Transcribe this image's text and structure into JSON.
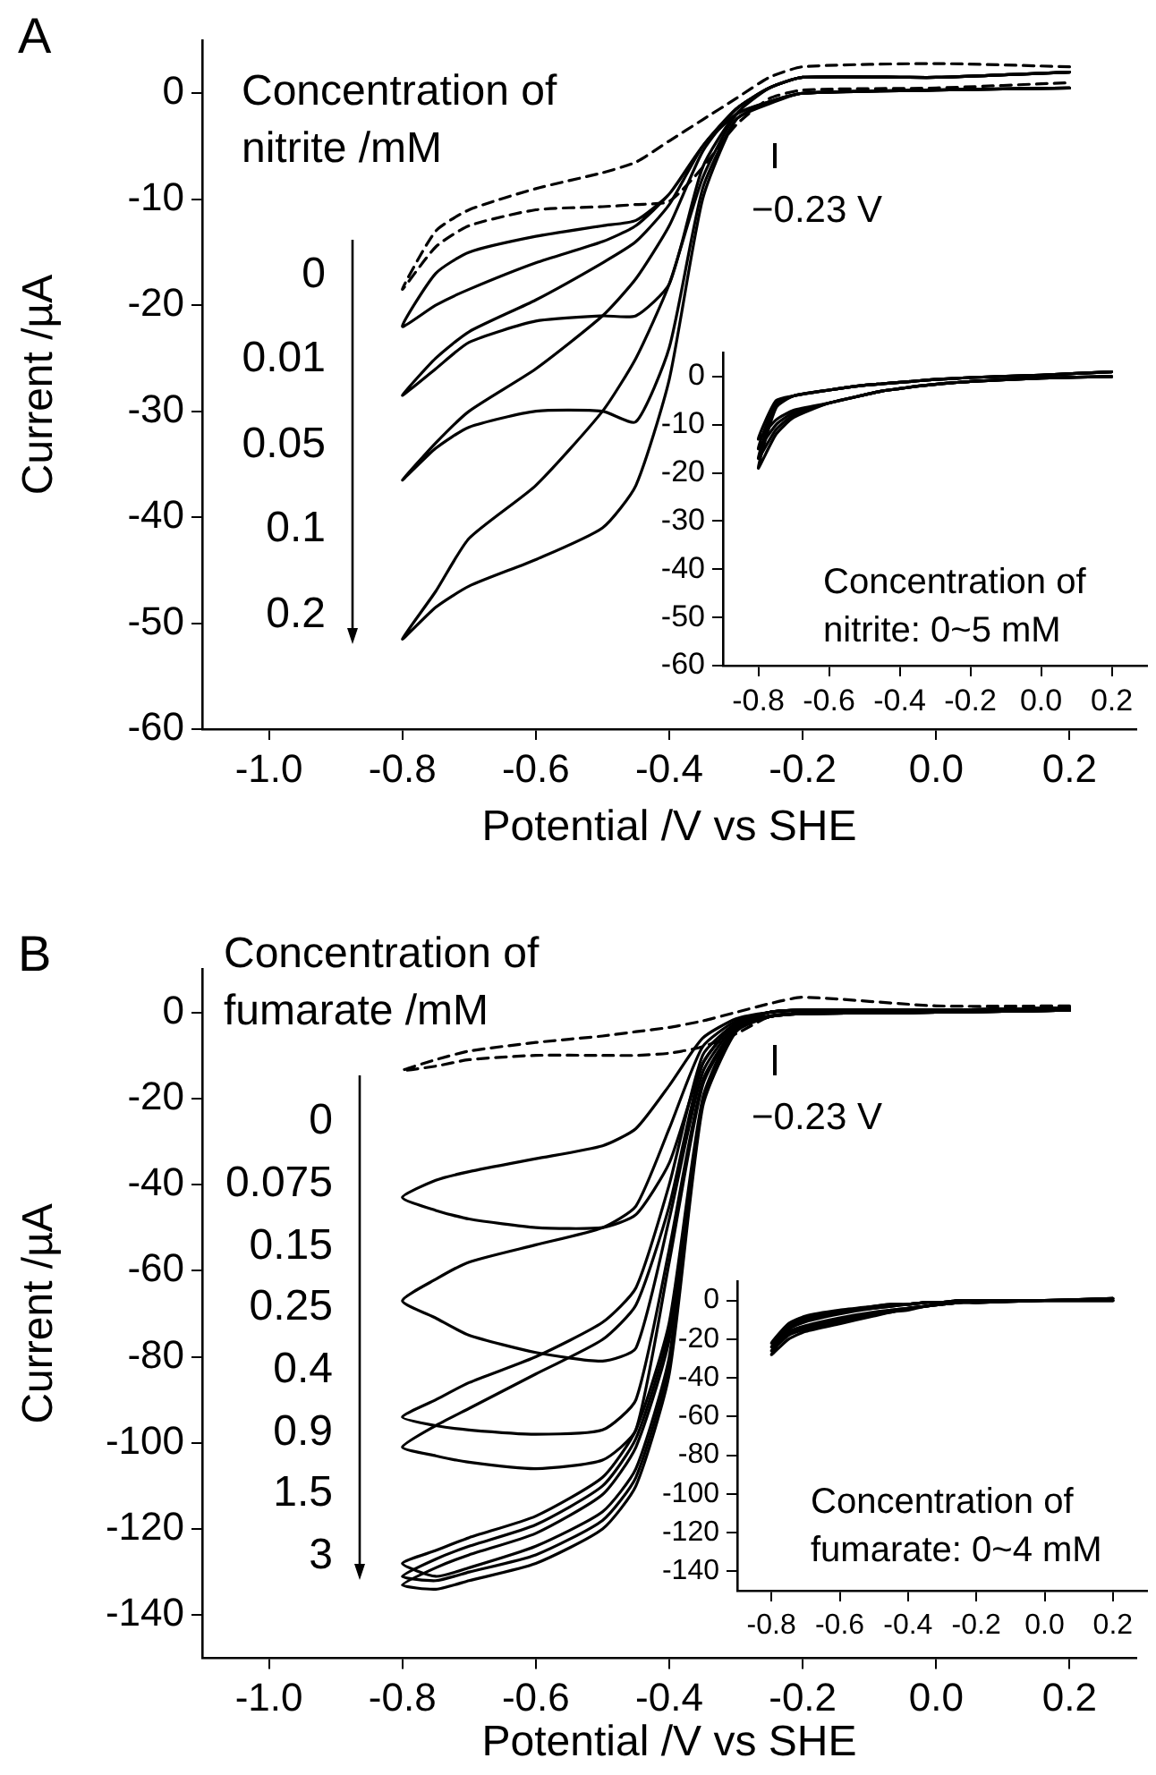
{
  "chart_data": [
    {
      "type": "line",
      "title": "A",
      "xlabel": "Potential /V vs SHE",
      "ylabel": "Current /µA",
      "xlim": [
        -1.1,
        0.3
      ],
      "ylim": [
        -60,
        5
      ],
      "xticks": [
        {
          "value": -1,
          "label": "-1.0"
        },
        {
          "value": -0.8,
          "label": "-0.8"
        },
        {
          "value": -0.6,
          "label": "-0.6"
        },
        {
          "value": -0.4,
          "label": "-0.4"
        },
        {
          "value": -0.2,
          "label": "-0.2"
        },
        {
          "value": 0,
          "label": "0.0"
        },
        {
          "value": 0.2,
          "label": "0.2"
        }
      ],
      "yticks": [
        -60,
        -50,
        -40,
        -30,
        -20,
        -10,
        0
      ],
      "annotations": [
        "Concentration of nitrite /mM",
        "0",
        "0.01",
        "0.05",
        "0.1",
        "0.2",
        "−0.23 V"
      ],
      "series": [
        {
          "color": "#000000",
          "line_style": "dashed",
          "x": [
            0.2,
            0,
            -0.2,
            -0.25,
            -0.3,
            -0.35,
            -0.4,
            -0.45,
            -0.5,
            -0.6,
            -0.7,
            -0.75,
            -0.8,
            -0.75,
            -0.7,
            -0.6,
            -0.5,
            -0.45,
            -0.4,
            -0.35,
            -0.3,
            -0.25,
            -0.2,
            0,
            0.2
          ],
          "values": [
            2.5,
            2.8,
            2.5,
            1.5,
            -0.5,
            -2.5,
            -4.5,
            -6.5,
            -7.5,
            -9,
            -11,
            -13,
            -18.5,
            -14.5,
            -12.5,
            -11,
            -10.7,
            -10.5,
            -10.2,
            -7,
            -3,
            -0.5,
            0.3,
            0.5,
            1
          ]
        },
        {
          "color": "#000000",
          "x": [
            0.2,
            0,
            -0.2,
            -0.25,
            -0.3,
            -0.35,
            -0.4,
            -0.45,
            -0.5,
            -0.6,
            -0.7,
            -0.75,
            -0.8,
            -0.75,
            -0.7,
            -0.6,
            -0.5,
            -0.45,
            -0.4,
            -0.35,
            -0.3,
            -0.25,
            -0.2,
            0,
            0.2
          ],
          "values": [
            0.5,
            0.3,
            0,
            -0.8,
            -2,
            -5,
            -9.5,
            -12.5,
            -14,
            -16,
            -18.5,
            -20,
            -22,
            -17,
            -15,
            -13.5,
            -12.5,
            -12,
            -9.5,
            -5,
            -1.5,
            0.5,
            1.5,
            1.5,
            2
          ]
        },
        {
          "color": "#000000",
          "x": [
            0.2,
            0,
            -0.2,
            -0.25,
            -0.3,
            -0.35,
            -0.4,
            -0.45,
            -0.5,
            -0.6,
            -0.7,
            -0.75,
            -0.8,
            -0.75,
            -0.7,
            -0.6,
            -0.5,
            -0.45,
            -0.4,
            -0.35,
            -0.3,
            -0.25,
            -0.2,
            0,
            0.2
          ],
          "values": [
            0.5,
            0.3,
            0,
            -0.8,
            -2,
            -7,
            -18,
            -21,
            -21,
            -21.5,
            -23.5,
            -26,
            -28.5,
            -25,
            -22.5,
            -19.5,
            -16,
            -14,
            -10.5,
            -5,
            -1.5,
            0.5,
            1.5,
            1.5,
            2
          ]
        },
        {
          "color": "#000000",
          "x": [
            0.2,
            0,
            -0.2,
            -0.25,
            -0.3,
            -0.35,
            -0.4,
            -0.45,
            -0.5,
            -0.6,
            -0.7,
            -0.75,
            -0.8,
            -0.75,
            -0.7,
            -0.6,
            -0.5,
            -0.45,
            -0.4,
            -0.35,
            -0.3,
            -0.25,
            -0.2,
            0,
            0.2
          ],
          "values": [
            0.5,
            0.3,
            0,
            -0.8,
            -2.5,
            -9,
            -24,
            -31,
            -30,
            -30,
            -31.5,
            -33.5,
            -36.5,
            -33,
            -30,
            -26,
            -21,
            -17.5,
            -12.5,
            -5.5,
            -1.5,
            0.5,
            1.5,
            1.5,
            2
          ]
        },
        {
          "color": "#000000",
          "x": [
            0.2,
            0,
            -0.2,
            -0.25,
            -0.3,
            -0.35,
            -0.4,
            -0.45,
            -0.5,
            -0.6,
            -0.7,
            -0.75,
            -0.8,
            -0.75,
            -0.7,
            -0.6,
            -0.5,
            -0.45,
            -0.4,
            -0.35,
            -0.3,
            -0.25,
            -0.2,
            0,
            0.2
          ],
          "values": [
            0.5,
            0.3,
            0,
            -1,
            -2.5,
            -10,
            -27,
            -37,
            -41,
            -44,
            -46.5,
            -48.5,
            -51.5,
            -47,
            -42,
            -37,
            -30,
            -25,
            -18,
            -8,
            -2,
            0.5,
            1.5,
            1.5,
            2
          ]
        }
      ]
    },
    {
      "type": "line",
      "xlim": [
        -0.9,
        0.3
      ],
      "ylim": [
        -60,
        5
      ],
      "xticks": [
        {
          "value": -0.8,
          "label": "-0.8"
        },
        {
          "value": -0.6,
          "label": "-0.6"
        },
        {
          "value": -0.4,
          "label": "-0.4"
        },
        {
          "value": -0.2,
          "label": "-0.2"
        },
        {
          "value": 0,
          "label": "0.0"
        },
        {
          "value": 0.2,
          "label": "0.2"
        }
      ],
      "yticks": [
        -60,
        -50,
        -40,
        -30,
        -20,
        -10,
        0
      ],
      "annotations": [
        "Concentration of nitrite: 0~5 mM"
      ],
      "series": [
        {
          "color": "#000000",
          "x": [
            0.2,
            0,
            -0.2,
            -0.25,
            -0.3,
            -0.35,
            -0.4,
            -0.45,
            -0.5,
            -0.6,
            -0.7,
            -0.75,
            -0.8,
            -0.75,
            -0.7,
            -0.6,
            -0.5,
            -0.45,
            -0.4,
            -0.35,
            -0.3,
            -0.25,
            -0.2,
            0,
            0.2
          ],
          "values": [
            0,
            -0.3,
            -1,
            -1.3,
            -1.6,
            -2,
            -2.5,
            -3,
            -3.8,
            -5.5,
            -7,
            -9,
            -13,
            -5,
            -4,
            -2.8,
            -1.8,
            -1.5,
            -1.2,
            -0.9,
            -0.6,
            -0.4,
            -0.2,
            0.3,
            1
          ]
        },
        {
          "color": "#000000",
          "x": [
            0.2,
            0,
            -0.2,
            -0.25,
            -0.3,
            -0.35,
            -0.4,
            -0.45,
            -0.5,
            -0.6,
            -0.7,
            -0.75,
            -0.8,
            -0.75,
            -0.7,
            -0.6,
            -0.5,
            -0.45,
            -0.4,
            -0.35,
            -0.3,
            -0.25,
            -0.2,
            0,
            0.2
          ],
          "values": [
            0,
            -0.3,
            -1,
            -1.3,
            -1.6,
            -2,
            -2.5,
            -3,
            -3.8,
            -5.5,
            -7.5,
            -10,
            -15,
            -5.5,
            -4,
            -2.8,
            -1.8,
            -1.5,
            -1.2,
            -0.9,
            -0.6,
            -0.4,
            -0.2,
            0.3,
            1
          ]
        },
        {
          "color": "#000000",
          "x": [
            0.2,
            0,
            -0.2,
            -0.25,
            -0.3,
            -0.35,
            -0.4,
            -0.45,
            -0.5,
            -0.6,
            -0.7,
            -0.75,
            -0.8,
            -0.75,
            -0.7,
            -0.6,
            -0.5,
            -0.45,
            -0.4,
            -0.35,
            -0.3,
            -0.25,
            -0.2,
            0,
            0.2
          ],
          "values": [
            0,
            -0.3,
            -1,
            -1.3,
            -1.6,
            -2,
            -2.5,
            -3,
            -3.8,
            -5.5,
            -8,
            -11,
            -17,
            -6,
            -4,
            -2.8,
            -1.8,
            -1.5,
            -1.2,
            -0.9,
            -0.6,
            -0.4,
            -0.2,
            0.3,
            1
          ]
        },
        {
          "color": "#000000",
          "x": [
            0.2,
            0,
            -0.2,
            -0.25,
            -0.3,
            -0.35,
            -0.4,
            -0.45,
            -0.5,
            -0.6,
            -0.7,
            -0.75,
            -0.8,
            -0.75,
            -0.7,
            -0.6,
            -0.5,
            -0.45,
            -0.4,
            -0.35,
            -0.3,
            -0.25,
            -0.2,
            0,
            0.2
          ],
          "values": [
            0,
            -0.3,
            -1,
            -1.3,
            -1.6,
            -2,
            -2.5,
            -3,
            -3.8,
            -5.5,
            -8.5,
            -12,
            -19,
            -6.5,
            -4,
            -2.8,
            -1.8,
            -1.5,
            -1.2,
            -0.9,
            -0.6,
            -0.4,
            -0.2,
            0.3,
            1
          ]
        }
      ]
    },
    {
      "type": "line",
      "title": "B",
      "xlabel": "Potential /V vs SHE",
      "ylabel": "Current /µA",
      "xlim": [
        -1.1,
        0.3
      ],
      "ylim": [
        -150,
        10
      ],
      "xticks": [
        {
          "value": -1,
          "label": "-1.0"
        },
        {
          "value": -0.8,
          "label": "-0.8"
        },
        {
          "value": -0.6,
          "label": "-0.6"
        },
        {
          "value": -0.4,
          "label": "-0.4"
        },
        {
          "value": -0.2,
          "label": "-0.2"
        },
        {
          "value": 0,
          "label": "0.0"
        },
        {
          "value": 0.2,
          "label": "0.2"
        }
      ],
      "yticks": [
        -140,
        -120,
        -100,
        -80,
        -60,
        -40,
        -20,
        0
      ],
      "annotations": [
        "Concentration of fumarate /mM",
        "0",
        "0.075",
        "0.15",
        "0.25",
        "0.4",
        "0.9",
        "1.5",
        "3",
        "−0.23 V"
      ],
      "series": [
        {
          "color": "#000000",
          "line_style": "dashed",
          "x": [
            0.2,
            0,
            -0.2,
            -0.25,
            -0.3,
            -0.35,
            -0.4,
            -0.45,
            -0.5,
            -0.6,
            -0.7,
            -0.75,
            -0.8,
            -0.75,
            -0.7,
            -0.6,
            -0.5,
            -0.45,
            -0.4,
            -0.35,
            -0.3,
            -0.25,
            -0.2,
            0,
            0.2
          ],
          "values": [
            1.5,
            1.5,
            3.5,
            2,
            0,
            -2,
            -3.5,
            -4.5,
            -5.5,
            -7,
            -9,
            -11,
            -13.5,
            -12.5,
            -11,
            -10,
            -10,
            -10,
            -9.5,
            -8,
            -5,
            -1,
            0,
            0.5,
            1
          ]
        },
        {
          "color": "#000000",
          "x": [
            0.2,
            0,
            -0.2,
            -0.25,
            -0.3,
            -0.35,
            -0.4,
            -0.45,
            -0.5,
            -0.6,
            -0.7,
            -0.75,
            -0.8,
            -0.75,
            -0.7,
            -0.6,
            -0.5,
            -0.45,
            -0.4,
            -0.35,
            -0.3,
            -0.25,
            -0.2,
            0,
            0.2
          ],
          "values": [
            0.5,
            0,
            -0.3,
            -0.8,
            -2.5,
            -12,
            -35,
            -47,
            -50,
            -50,
            -48,
            -46,
            -43,
            -39,
            -37,
            -34,
            -31,
            -27,
            -17,
            -6,
            -1.5,
            0,
            0.5,
            0.5,
            1
          ]
        },
        {
          "color": "#000000",
          "x": [
            0.2,
            0,
            -0.2,
            -0.25,
            -0.3,
            -0.35,
            -0.4,
            -0.45,
            -0.5,
            -0.6,
            -0.7,
            -0.75,
            -0.8,
            -0.75,
            -0.7,
            -0.6,
            -0.5,
            -0.45,
            -0.4,
            -0.35,
            -0.3,
            -0.25,
            -0.2,
            0,
            0.2
          ],
          "values": [
            0.5,
            0,
            -0.3,
            -1,
            -3,
            -14,
            -48,
            -78,
            -81,
            -79,
            -75,
            -71,
            -67,
            -62,
            -58,
            -54,
            -50,
            -45,
            -27,
            -8,
            -2,
            0,
            0.5,
            0.5,
            1
          ]
        },
        {
          "color": "#000000",
          "x": [
            0.2,
            0,
            -0.2,
            -0.25,
            -0.3,
            -0.35,
            -0.4,
            -0.45,
            -0.5,
            -0.6,
            -0.7,
            -0.75,
            -0.8,
            -0.75,
            -0.7,
            -0.6,
            -0.5,
            -0.45,
            -0.4,
            -0.35,
            -0.3,
            -0.25,
            -0.2,
            0,
            0.2
          ],
          "values": [
            0.5,
            0,
            -0.3,
            -1,
            -3.5,
            -16,
            -55,
            -90,
            -97,
            -98,
            -97,
            -96,
            -94,
            -90,
            -86,
            -80,
            -72,
            -64,
            -40,
            -10,
            -2.5,
            0,
            0.5,
            0.5,
            1
          ]
        },
        {
          "color": "#000000",
          "x": [
            0.2,
            0,
            -0.2,
            -0.25,
            -0.3,
            -0.35,
            -0.4,
            -0.45,
            -0.5,
            -0.6,
            -0.7,
            -0.75,
            -0.8,
            -0.75,
            -0.7,
            -0.6,
            -0.5,
            -0.45,
            -0.4,
            -0.35,
            -0.3,
            -0.25,
            -0.2,
            0,
            0.2
          ],
          "values": [
            0.5,
            0,
            -0.3,
            -1,
            -3.5,
            -17,
            -58,
            -97,
            -104,
            -106,
            -104.5,
            -103,
            -101,
            -96,
            -92,
            -84,
            -76,
            -68,
            -45,
            -12,
            -2.5,
            0,
            0.5,
            0.5,
            1
          ]
        },
        {
          "color": "#000000",
          "x": [
            0.2,
            0,
            -0.2,
            -0.25,
            -0.3,
            -0.35,
            -0.4,
            -0.45,
            -0.5,
            -0.6,
            -0.7,
            -0.75,
            -0.8,
            -0.75,
            -0.7,
            -0.6,
            -0.5,
            -0.45,
            -0.4,
            -0.35,
            -0.3,
            -0.25,
            -0.2,
            0,
            0.2
          ],
          "values": [
            0.5,
            0,
            -0.3,
            -1,
            -4,
            -20,
            -80,
            -106,
            -116,
            -124,
            -129,
            -131,
            -128,
            -125,
            -122,
            -117,
            -108,
            -97,
            -72,
            -20,
            -3,
            0,
            0.5,
            0.5,
            1
          ]
        },
        {
          "color": "#000000",
          "x": [
            0.2,
            0,
            -0.2,
            -0.25,
            -0.3,
            -0.35,
            -0.4,
            -0.45,
            -0.5,
            -0.6,
            -0.7,
            -0.75,
            -0.8,
            -0.75,
            -0.7,
            -0.6,
            -0.5,
            -0.45,
            -0.4,
            -0.35,
            -0.3,
            -0.25,
            -0.2,
            0,
            0.2
          ],
          "values": [
            0.5,
            0,
            -0.3,
            -1,
            -4,
            -21,
            -82,
            -108,
            -118,
            -126,
            -130,
            -132,
            -131,
            -127,
            -124,
            -119,
            -110,
            -99,
            -74,
            -21,
            -3,
            0,
            0.5,
            0.5,
            1
          ]
        },
        {
          "color": "#000000",
          "x": [
            0.2,
            0,
            -0.2,
            -0.25,
            -0.3,
            -0.35,
            -0.4,
            -0.45,
            -0.5,
            -0.6,
            -0.7,
            -0.75,
            -0.8,
            -0.75,
            -0.7,
            -0.6,
            -0.5,
            -0.45,
            -0.4,
            -0.35,
            -0.3,
            -0.25,
            -0.2,
            0,
            0.2
          ],
          "values": [
            0.5,
            0,
            -0.3,
            -1,
            -4.5,
            -22,
            -84,
            -110,
            -120,
            -128,
            -132,
            -134,
            -133,
            -129,
            -126,
            -121,
            -112,
            -101,
            -76,
            -22,
            -3,
            0,
            0.5,
            0.5,
            1
          ]
        }
      ]
    },
    {
      "type": "line",
      "xlim": [
        -0.9,
        0.3
      ],
      "ylim": [
        -150,
        10
      ],
      "xticks": [
        {
          "value": -0.8,
          "label": "-0.8"
        },
        {
          "value": -0.6,
          "label": "-0.6"
        },
        {
          "value": -0.4,
          "label": "-0.4"
        },
        {
          "value": -0.2,
          "label": "-0.2"
        },
        {
          "value": 0,
          "label": "0.0"
        },
        {
          "value": 0.2,
          "label": "0.2"
        }
      ],
      "yticks": [
        -140,
        -120,
        -100,
        -80,
        -60,
        -40,
        -20,
        0
      ],
      "annotations": [
        "Concentration of fumarate: 0~4 mM"
      ],
      "series": [
        {
          "color": "#000000",
          "x": [
            0.2,
            0,
            -0.2,
            -0.25,
            -0.3,
            -0.35,
            -0.4,
            -0.45,
            -0.5,
            -0.6,
            -0.7,
            -0.75,
            -0.8,
            -0.75,
            -0.7,
            -0.6,
            -0.5,
            -0.45,
            -0.4,
            -0.35,
            -0.3,
            -0.25,
            -0.2,
            0,
            0.2
          ],
          "values": [
            0,
            0,
            -1,
            -1,
            -2,
            -3,
            -4,
            -5,
            -6,
            -9,
            -13,
            -16,
            -22,
            -12,
            -8,
            -5,
            -3,
            -2,
            -2,
            -1,
            -1,
            0,
            0,
            0,
            1
          ]
        },
        {
          "color": "#000000",
          "x": [
            0.2,
            0,
            -0.2,
            -0.25,
            -0.3,
            -0.35,
            -0.4,
            -0.45,
            -0.5,
            -0.6,
            -0.7,
            -0.75,
            -0.8,
            -0.75,
            -0.7,
            -0.6,
            -0.5,
            -0.45,
            -0.4,
            -0.35,
            -0.3,
            -0.25,
            -0.2,
            0,
            0.2
          ],
          "values": [
            0,
            0,
            -1,
            -1,
            -2,
            -3,
            -4,
            -5,
            -7,
            -10,
            -14,
            -17,
            -24,
            -13,
            -9,
            -6,
            -3,
            -2,
            -2,
            -1,
            -1,
            0,
            0,
            0,
            1
          ]
        },
        {
          "color": "#000000",
          "x": [
            0.2,
            0,
            -0.2,
            -0.25,
            -0.3,
            -0.35,
            -0.4,
            -0.45,
            -0.5,
            -0.6,
            -0.7,
            -0.75,
            -0.8,
            -0.75,
            -0.7,
            -0.6,
            -0.5,
            -0.45,
            -0.4,
            -0.35,
            -0.3,
            -0.25,
            -0.2,
            0,
            0.2
          ],
          "values": [
            0,
            0,
            -1,
            -1,
            -2,
            -3,
            -4,
            -6,
            -7,
            -11,
            -15,
            -18,
            -26,
            -14,
            -10,
            -6,
            -4,
            -3,
            -2,
            -1,
            -1,
            0,
            0,
            0,
            1
          ]
        },
        {
          "color": "#000000",
          "x": [
            0.2,
            0,
            -0.2,
            -0.25,
            -0.3,
            -0.35,
            -0.4,
            -0.45,
            -0.5,
            -0.6,
            -0.7,
            -0.75,
            -0.8,
            -0.75,
            -0.7,
            -0.6,
            -0.5,
            -0.45,
            -0.4,
            -0.35,
            -0.3,
            -0.25,
            -0.2,
            0,
            0.2
          ],
          "values": [
            0,
            0,
            -1,
            -1,
            -2,
            -3,
            -5,
            -6,
            -8,
            -12,
            -16,
            -20,
            -28,
            -15,
            -11,
            -7,
            -4,
            -3,
            -2,
            -1,
            -1,
            0,
            0,
            0,
            1
          ]
        }
      ]
    }
  ]
}
